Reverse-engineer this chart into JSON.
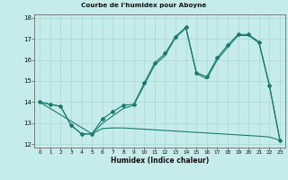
{
  "title": "Courbe de l'humidex pour Aboyne",
  "xlabel": "Humidex (Indice chaleur)",
  "bg_color": "#c5ecea",
  "grid_color": "#aad8d4",
  "line_color": "#1a7a6e",
  "xlim": [
    -0.5,
    23.5
  ],
  "ylim": [
    11.85,
    18.15
  ],
  "yticks": [
    12,
    13,
    14,
    15,
    16,
    17,
    18
  ],
  "xticks": [
    0,
    1,
    2,
    3,
    4,
    5,
    6,
    7,
    8,
    9,
    10,
    11,
    12,
    13,
    14,
    15,
    16,
    17,
    18,
    19,
    20,
    21,
    22,
    23
  ],
  "line1_x": [
    0,
    1,
    2,
    3,
    4,
    5,
    6,
    7,
    8,
    9,
    10,
    11,
    12,
    13,
    14,
    15,
    16,
    17,
    18,
    19,
    20,
    21,
    22,
    23
  ],
  "line1_y": [
    14.0,
    13.9,
    13.8,
    12.9,
    12.5,
    12.5,
    13.2,
    13.55,
    13.85,
    13.9,
    14.9,
    15.85,
    16.3,
    17.1,
    17.55,
    15.4,
    15.2,
    16.1,
    16.7,
    17.2,
    17.2,
    16.85,
    14.8,
    12.2
  ],
  "line2_x": [
    0,
    5,
    6,
    7,
    8,
    9,
    10,
    11,
    12,
    13,
    14,
    15,
    16,
    17,
    18,
    19,
    20,
    21,
    22,
    23
  ],
  "line2_y": [
    14.0,
    12.5,
    13.0,
    13.35,
    13.7,
    13.85,
    14.8,
    15.75,
    16.2,
    17.05,
    17.5,
    15.35,
    15.1,
    16.0,
    16.6,
    17.15,
    17.15,
    16.8,
    14.75,
    12.2
  ],
  "line3_x": [
    0,
    1,
    2,
    3,
    4,
    5,
    6,
    7,
    8,
    9,
    10,
    11,
    12,
    13,
    14,
    15,
    16,
    17,
    18,
    19,
    20,
    21,
    22,
    23
  ],
  "line3_y": [
    14.0,
    13.9,
    13.8,
    12.9,
    12.5,
    12.5,
    12.75,
    12.78,
    12.78,
    12.75,
    12.72,
    12.69,
    12.66,
    12.63,
    12.6,
    12.57,
    12.54,
    12.51,
    12.48,
    12.45,
    12.42,
    12.39,
    12.35,
    12.2
  ]
}
